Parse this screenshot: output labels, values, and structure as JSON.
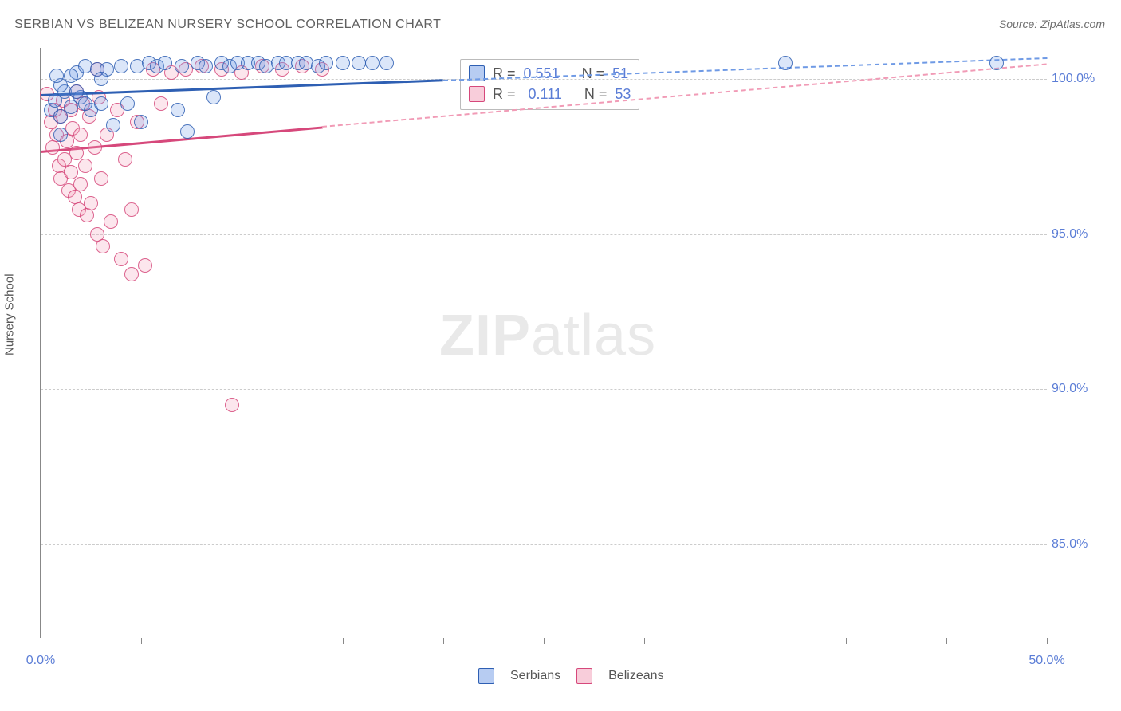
{
  "title": "SERBIAN VS BELIZEAN NURSERY SCHOOL CORRELATION CHART",
  "source_label": "Source: ZipAtlas.com",
  "ylabel": "Nursery School",
  "watermark": {
    "bold": "ZIP",
    "rest": "atlas"
  },
  "chart": {
    "type": "scatter",
    "background_color": "#ffffff",
    "grid_color": "#cccccc",
    "axis_color": "#888888",
    "label_color": "#5b7dd6",
    "xlim": [
      0,
      50
    ],
    "ylim": [
      82,
      101
    ],
    "xticks": [
      0,
      5,
      10,
      15,
      20,
      25,
      30,
      35,
      40,
      45,
      50
    ],
    "xtick_labels": {
      "0": "0.0%",
      "50": "50.0%"
    },
    "yticks": [
      85,
      90,
      95,
      100
    ],
    "ytick_labels": {
      "85": "85.0%",
      "90": "90.0%",
      "95": "95.0%",
      "100": "100.0%"
    },
    "marker_radius": 9,
    "marker_border_width": 1.5,
    "marker_fill_opacity": 0.3,
    "trend_solid_width": 3,
    "trend_dash_width": 2
  },
  "series": {
    "serbians": {
      "label": "Serbians",
      "color_fill": "#6f9ae5",
      "color_stroke": "#2e5fb3",
      "R": "0.551",
      "N": "51",
      "trend": {
        "x1": 0,
        "y1": 99.5,
        "x2": 50,
        "y2": 100.7,
        "solid_until_x": 20
      },
      "points": [
        [
          0.5,
          99.0
        ],
        [
          0.7,
          99.3
        ],
        [
          1.0,
          98.8
        ],
        [
          1.2,
          99.6
        ],
        [
          1.5,
          99.1
        ],
        [
          1.8,
          100.2
        ],
        [
          2.0,
          99.4
        ],
        [
          2.2,
          100.4
        ],
        [
          2.5,
          99.0
        ],
        [
          2.8,
          100.3
        ],
        [
          3.0,
          99.2
        ],
        [
          3.3,
          100.3
        ],
        [
          3.6,
          98.5
        ],
        [
          4.0,
          100.4
        ],
        [
          4.3,
          99.2
        ],
        [
          4.8,
          100.4
        ],
        [
          5.0,
          98.6
        ],
        [
          5.4,
          100.5
        ],
        [
          5.8,
          100.4
        ],
        [
          6.2,
          100.5
        ],
        [
          6.8,
          99.0
        ],
        [
          7.0,
          100.4
        ],
        [
          7.3,
          98.3
        ],
        [
          7.8,
          100.5
        ],
        [
          8.2,
          100.4
        ],
        [
          8.6,
          99.4
        ],
        [
          9.0,
          100.5
        ],
        [
          9.4,
          100.4
        ],
        [
          9.8,
          100.5
        ],
        [
          10.3,
          100.5
        ],
        [
          10.8,
          100.5
        ],
        [
          11.2,
          100.4
        ],
        [
          11.8,
          100.5
        ],
        [
          12.2,
          100.5
        ],
        [
          12.8,
          100.5
        ],
        [
          13.2,
          100.5
        ],
        [
          13.8,
          100.4
        ],
        [
          14.2,
          100.5
        ],
        [
          15.0,
          100.5
        ],
        [
          15.8,
          100.5
        ],
        [
          16.5,
          100.5
        ],
        [
          17.2,
          100.5
        ],
        [
          37.0,
          100.5
        ],
        [
          47.5,
          100.5
        ],
        [
          1.0,
          99.8
        ],
        [
          1.5,
          100.1
        ],
        [
          2.2,
          99.2
        ],
        [
          3.0,
          100.0
        ],
        [
          0.8,
          100.1
        ],
        [
          1.8,
          99.6
        ],
        [
          1.0,
          98.2
        ]
      ]
    },
    "belizeans": {
      "label": "Belizeans",
      "color_fill": "#f19bb6",
      "color_stroke": "#d6487b",
      "R": "0.111",
      "N": "53",
      "trend": {
        "x1": 0,
        "y1": 97.7,
        "x2": 50,
        "y2": 100.5,
        "solid_until_x": 14
      },
      "points": [
        [
          0.3,
          99.5
        ],
        [
          0.5,
          98.6
        ],
        [
          0.6,
          97.8
        ],
        [
          0.7,
          99.0
        ],
        [
          0.8,
          98.2
        ],
        [
          0.9,
          97.2
        ],
        [
          1.0,
          98.8
        ],
        [
          1.0,
          96.8
        ],
        [
          1.1,
          99.3
        ],
        [
          1.2,
          97.4
        ],
        [
          1.3,
          98.0
        ],
        [
          1.4,
          96.4
        ],
        [
          1.5,
          99.0
        ],
        [
          1.5,
          97.0
        ],
        [
          1.6,
          98.4
        ],
        [
          1.7,
          96.2
        ],
        [
          1.8,
          99.6
        ],
        [
          1.8,
          97.6
        ],
        [
          1.9,
          95.8
        ],
        [
          2.0,
          98.2
        ],
        [
          2.0,
          96.6
        ],
        [
          2.1,
          99.2
        ],
        [
          2.2,
          97.2
        ],
        [
          2.3,
          95.6
        ],
        [
          2.4,
          98.8
        ],
        [
          2.5,
          96.0
        ],
        [
          2.7,
          97.8
        ],
        [
          2.8,
          95.0
        ],
        [
          2.9,
          99.4
        ],
        [
          3.0,
          96.8
        ],
        [
          3.1,
          94.6
        ],
        [
          3.3,
          98.2
        ],
        [
          3.5,
          95.4
        ],
        [
          3.8,
          99.0
        ],
        [
          4.0,
          94.2
        ],
        [
          4.2,
          97.4
        ],
        [
          4.5,
          95.8
        ],
        [
          4.8,
          98.6
        ],
        [
          5.2,
          94.0
        ],
        [
          5.6,
          100.3
        ],
        [
          6.0,
          99.2
        ],
        [
          6.5,
          100.2
        ],
        [
          7.2,
          100.3
        ],
        [
          8.0,
          100.4
        ],
        [
          9.0,
          100.3
        ],
        [
          10.0,
          100.2
        ],
        [
          11.0,
          100.4
        ],
        [
          12.0,
          100.3
        ],
        [
          13.0,
          100.4
        ],
        [
          14.0,
          100.3
        ],
        [
          4.5,
          93.7
        ],
        [
          2.8,
          100.3
        ],
        [
          9.5,
          89.5
        ]
      ]
    }
  },
  "stats_box": {
    "R_label": "R =",
    "N_label": "N ="
  },
  "legend": [
    "serbians",
    "belizeans"
  ]
}
